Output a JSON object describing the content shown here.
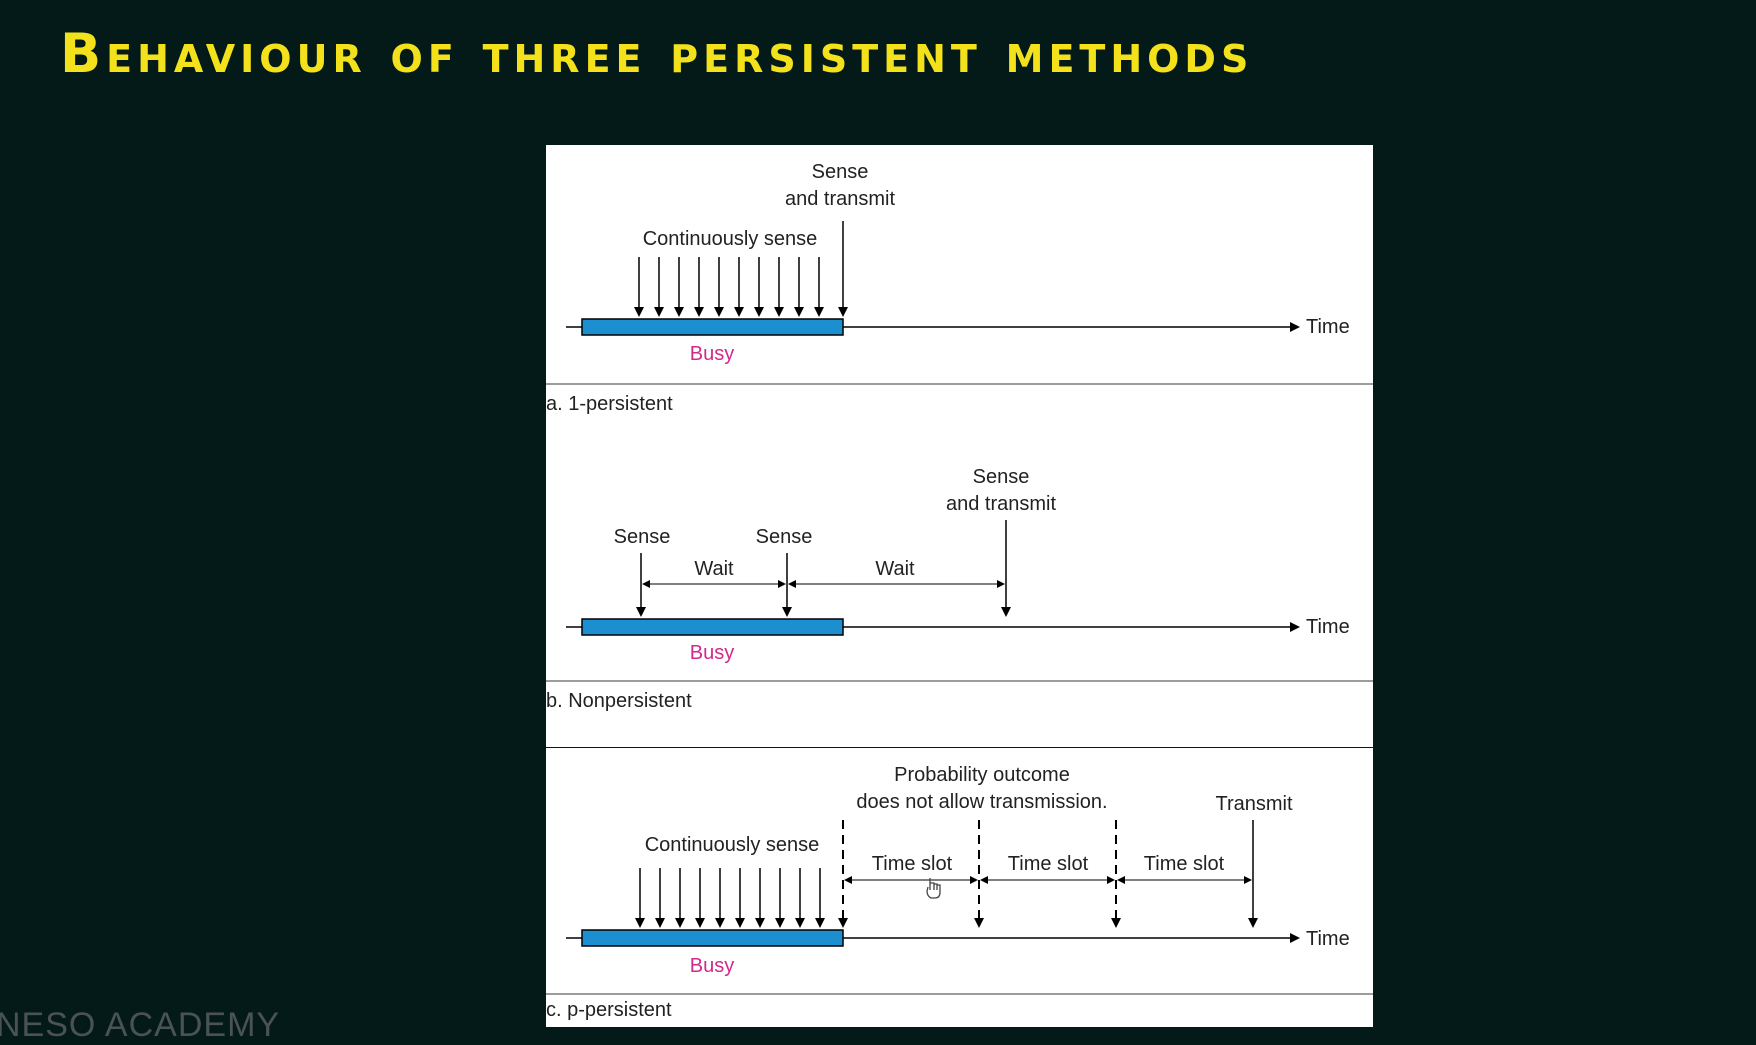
{
  "slide": {
    "title": "Behaviour of three persistent methods",
    "watermark": "NESO ACADEMY"
  },
  "panels": {
    "a": {
      "caption": "a. 1-persistent",
      "label_sense_line1": "Sense",
      "label_sense_line2": "and transmit",
      "label_continuous": "Continuously sense",
      "label_busy": "Busy",
      "label_time": "Time"
    },
    "b": {
      "caption": "b. Nonpersistent",
      "label_sense_1": "Sense",
      "label_sense_2": "Sense",
      "label_wait_1": "Wait",
      "label_wait_2": "Wait",
      "label_sense_tx_line1": "Sense",
      "label_sense_tx_line2": "and transmit",
      "label_busy": "Busy",
      "label_time": "Time"
    },
    "c": {
      "caption": "c. p-persistent",
      "label_prob_line1": "Probability outcome",
      "label_prob_line2": "does not allow transmission.",
      "label_continuous": "Continuously sense",
      "label_slot_1": "Time slot",
      "label_slot_2": "Time slot",
      "label_slot_3": "Time slot",
      "label_transmit": "Transmit",
      "label_busy": "Busy",
      "label_time": "Time"
    }
  },
  "colors": {
    "busy_bar": "#1b8fcf",
    "busy_label": "#d12a8a",
    "title": "#f3e21b",
    "background": "#041a18"
  }
}
